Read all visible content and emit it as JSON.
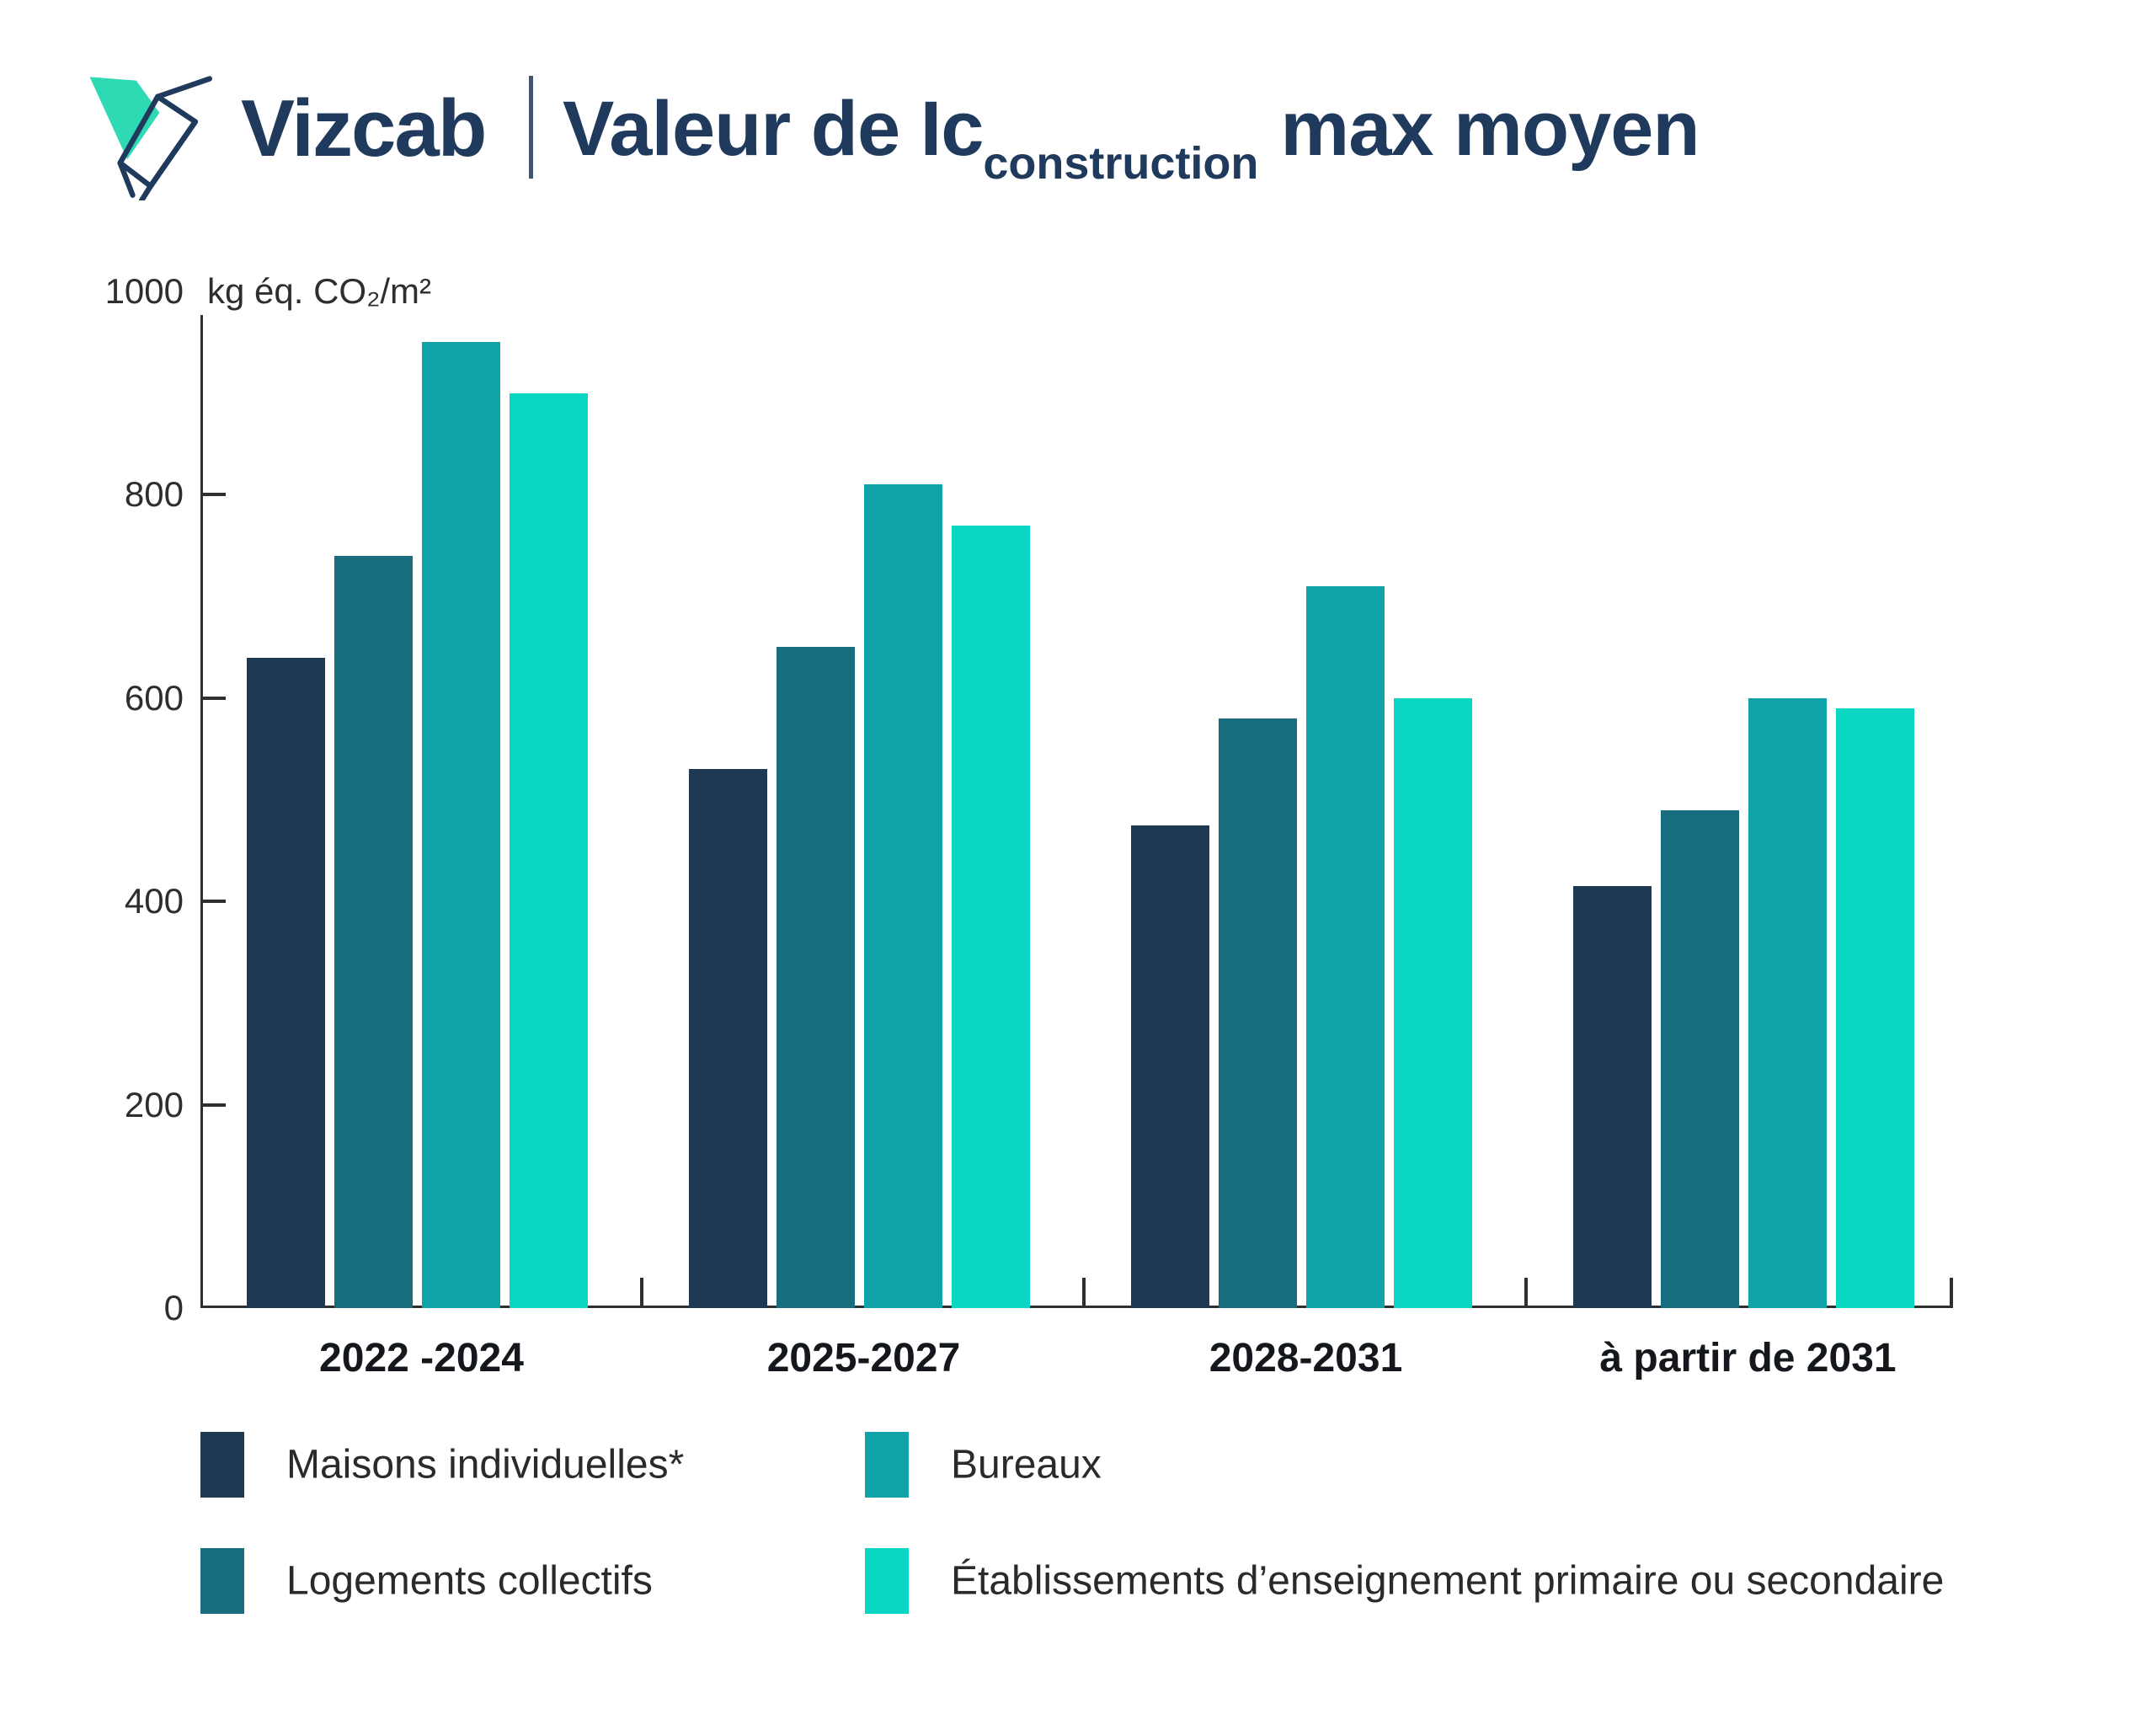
{
  "header": {
    "brand": "Vizcab",
    "title_main": "Valeur de Ic",
    "title_sub": "construction",
    "title_suffix": "max moyen"
  },
  "colors": {
    "brand_navy": "#1f3a5c",
    "logo_wing_teal": "#2edab4",
    "axis": "#2f2f2f",
    "series_1": "#1e3a53",
    "series_2": "#176d7e",
    "series_3": "#0fa2a7",
    "series_4": "#09d6c3"
  },
  "chart_data": {
    "type": "bar",
    "title": "Valeur de Ic construction max moyen",
    "unit": "kg éq. CO₂/m²",
    "ylabel": "kg éq. CO₂/m²",
    "xlabel": "",
    "ylim": [
      0,
      1000
    ],
    "yticks": [
      0,
      200,
      400,
      600,
      800,
      1000
    ],
    "grid": false,
    "legend_position": "bottom",
    "categories": [
      "2022 -2024",
      "2025-2027",
      "2028-2031",
      "à partir de 2031"
    ],
    "series": [
      {
        "name": "Maisons individuelles*",
        "color": "#1e3a53",
        "values": [
          640,
          530,
          475,
          415
        ]
      },
      {
        "name": "Logements collectifs",
        "color": "#176d7e",
        "values": [
          740,
          650,
          580,
          490
        ]
      },
      {
        "name": "Bureaux",
        "color": "#0fa2a7",
        "values": [
          950,
          810,
          710,
          600
        ]
      },
      {
        "name": "Établissements d’enseignement primaire ou secondaire",
        "color": "#09d6c3",
        "values": [
          900,
          770,
          600,
          590
        ]
      }
    ]
  }
}
